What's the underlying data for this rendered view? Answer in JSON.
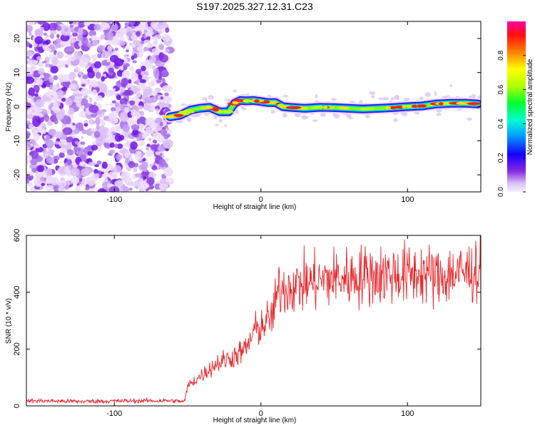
{
  "colors": {
    "snr_line": "#e8262a",
    "noise_purple": "#7a1ee6",
    "colormap": [
      "#f2e6ff",
      "#c9a0f0",
      "#8a2be2",
      "#4000ff",
      "#0040ff",
      "#00c8ff",
      "#00ff80",
      "#80ff00",
      "#ffff00",
      "#ff8000",
      "#ff1a1a",
      "#ff00a0"
    ]
  },
  "chart_data": [
    {
      "type": "heatmap",
      "title": "S197.2025.327.12.31.C23",
      "xlabel": "Height of straight line (km)",
      "ylabel": "Frequency (Hz)",
      "xlim": [
        -160,
        150
      ],
      "ylim": [
        -25,
        25
      ],
      "xticks": [
        -100,
        0,
        100
      ],
      "yticks": [
        -20,
        -10,
        0,
        10,
        20
      ],
      "xtick_labels": [
        "-100",
        "0",
        "100"
      ],
      "ytick_labels": [
        "-20",
        "-10",
        "0",
        "10",
        "20"
      ],
      "noise_region_x": [
        -160,
        -62
      ],
      "signal_track": {
        "x": [
          -62,
          -55,
          -48,
          -42,
          -35,
          -28,
          -22,
          -18,
          -14,
          -10,
          -5,
          0,
          5,
          10,
          15,
          20,
          30,
          40,
          50,
          60,
          70,
          80,
          90,
          100,
          110,
          120,
          130,
          140,
          148
        ],
        "frequency": [
          -3,
          -2.5,
          -1,
          -0.5,
          -0.2,
          -1.5,
          -1.5,
          1,
          1.8,
          1.7,
          1.8,
          1.5,
          1.2,
          1.2,
          0,
          -0.2,
          -0.5,
          -0.2,
          -0.3,
          -0.5,
          -0.7,
          -0.5,
          -0.3,
          0,
          0.2,
          0.8,
          1.0,
          1.0,
          0.8
        ]
      },
      "colorbar": {
        "label": "Normalized spectral amplitude",
        "range": [
          0,
          1
        ],
        "ticks": [
          0.0,
          0.2,
          0.4,
          0.6,
          0.8
        ],
        "tick_labels": [
          "0.0",
          "0.2",
          "0.4",
          "0.6",
          "0.8"
        ]
      }
    },
    {
      "type": "line",
      "title": "",
      "xlabel": "Height of straight line (km)",
      "ylabel": "SNR (10 * v/v)",
      "xlim": [
        -160,
        150
      ],
      "ylim": [
        0,
        600
      ],
      "xticks": [
        -100,
        0,
        100
      ],
      "yticks": [
        0,
        200,
        400,
        600
      ],
      "xtick_labels": [
        "-100",
        "0",
        "100"
      ],
      "ytick_labels": [
        "0",
        "200",
        "400",
        "600"
      ],
      "series": [
        {
          "name": "SNR",
          "x": [
            -160,
            -140,
            -120,
            -100,
            -80,
            -60,
            -52,
            -50,
            -40,
            -30,
            -20,
            -10,
            -5,
            0,
            5,
            8,
            10,
            12,
            20,
            30,
            40,
            50,
            60,
            70,
            80,
            90,
            100,
            110,
            120,
            130,
            140,
            150
          ],
          "y": [
            18,
            17,
            16,
            17,
            18,
            18,
            15,
            70,
            110,
            150,
            170,
            200,
            260,
            280,
            300,
            320,
            360,
            410,
            420,
            430,
            440,
            450,
            450,
            460,
            460,
            465,
            460,
            470,
            450,
            465,
            470,
            480
          ],
          "noise_amplitude_pct": 0.12
        }
      ]
    }
  ]
}
